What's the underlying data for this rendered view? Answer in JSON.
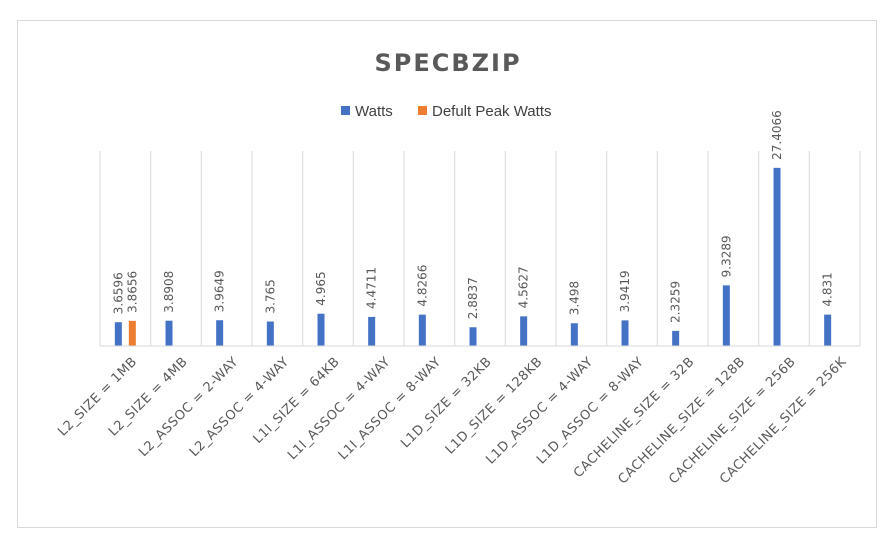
{
  "chart_data": {
    "type": "bar",
    "title": "SPECBZIP",
    "xlabel": "",
    "ylabel": "",
    "ylim": [
      0,
      30
    ],
    "grid": "vertical",
    "legend_position": "top",
    "categories": [
      "L2_SIZE = 1MB",
      "L2_SIZE = 4MB",
      "L2_ASSOC = 2-WAY",
      "L2_ASSOC = 4-WAY",
      "L1I_SIZE = 64KB",
      "L1I_ASSOC = 4-WAY",
      "L1I_ASSOC = 8-WAY",
      "L1D_SIZE = 32KB",
      "L1D_SIZE = 128KB",
      "L1D_ASSOC = 4-WAY",
      "L1D_ASSOC = 8-WAY",
      "CACHELINE_SIZE = 32B",
      "CACHELINE_SIZE = 128B",
      "CACHELINE_SIZE = 256B",
      "CACHELINE_SIZE = 256K"
    ],
    "series": [
      {
        "name": "Watts",
        "color": "#4472c4",
        "values": [
          3.6596,
          3.8908,
          3.9649,
          3.765,
          4.965,
          4.4711,
          4.8266,
          2.8837,
          4.5627,
          3.498,
          3.9419,
          2.3259,
          9.3289,
          27.4066,
          4.831
        ],
        "labels": [
          "3.6596",
          "3.8908",
          "3.9649",
          "3.765",
          "4.965",
          "4.4711",
          "4.8266",
          "2.8837",
          "4.5627",
          "3.498",
          "3.9419",
          "2.3259",
          "9.3289",
          "27.4066",
          "4.831"
        ]
      },
      {
        "name": "Defult Peak Watts",
        "color": "#ed7d31",
        "values": [
          3.8656,
          null,
          null,
          null,
          null,
          null,
          null,
          null,
          null,
          null,
          null,
          null,
          null,
          null,
          null
        ],
        "labels": [
          "3.8656",
          "",
          "",
          "",
          "",
          "",
          "",
          "",
          "",
          "",
          "",
          "",
          "",
          "",
          ""
        ]
      }
    ]
  }
}
